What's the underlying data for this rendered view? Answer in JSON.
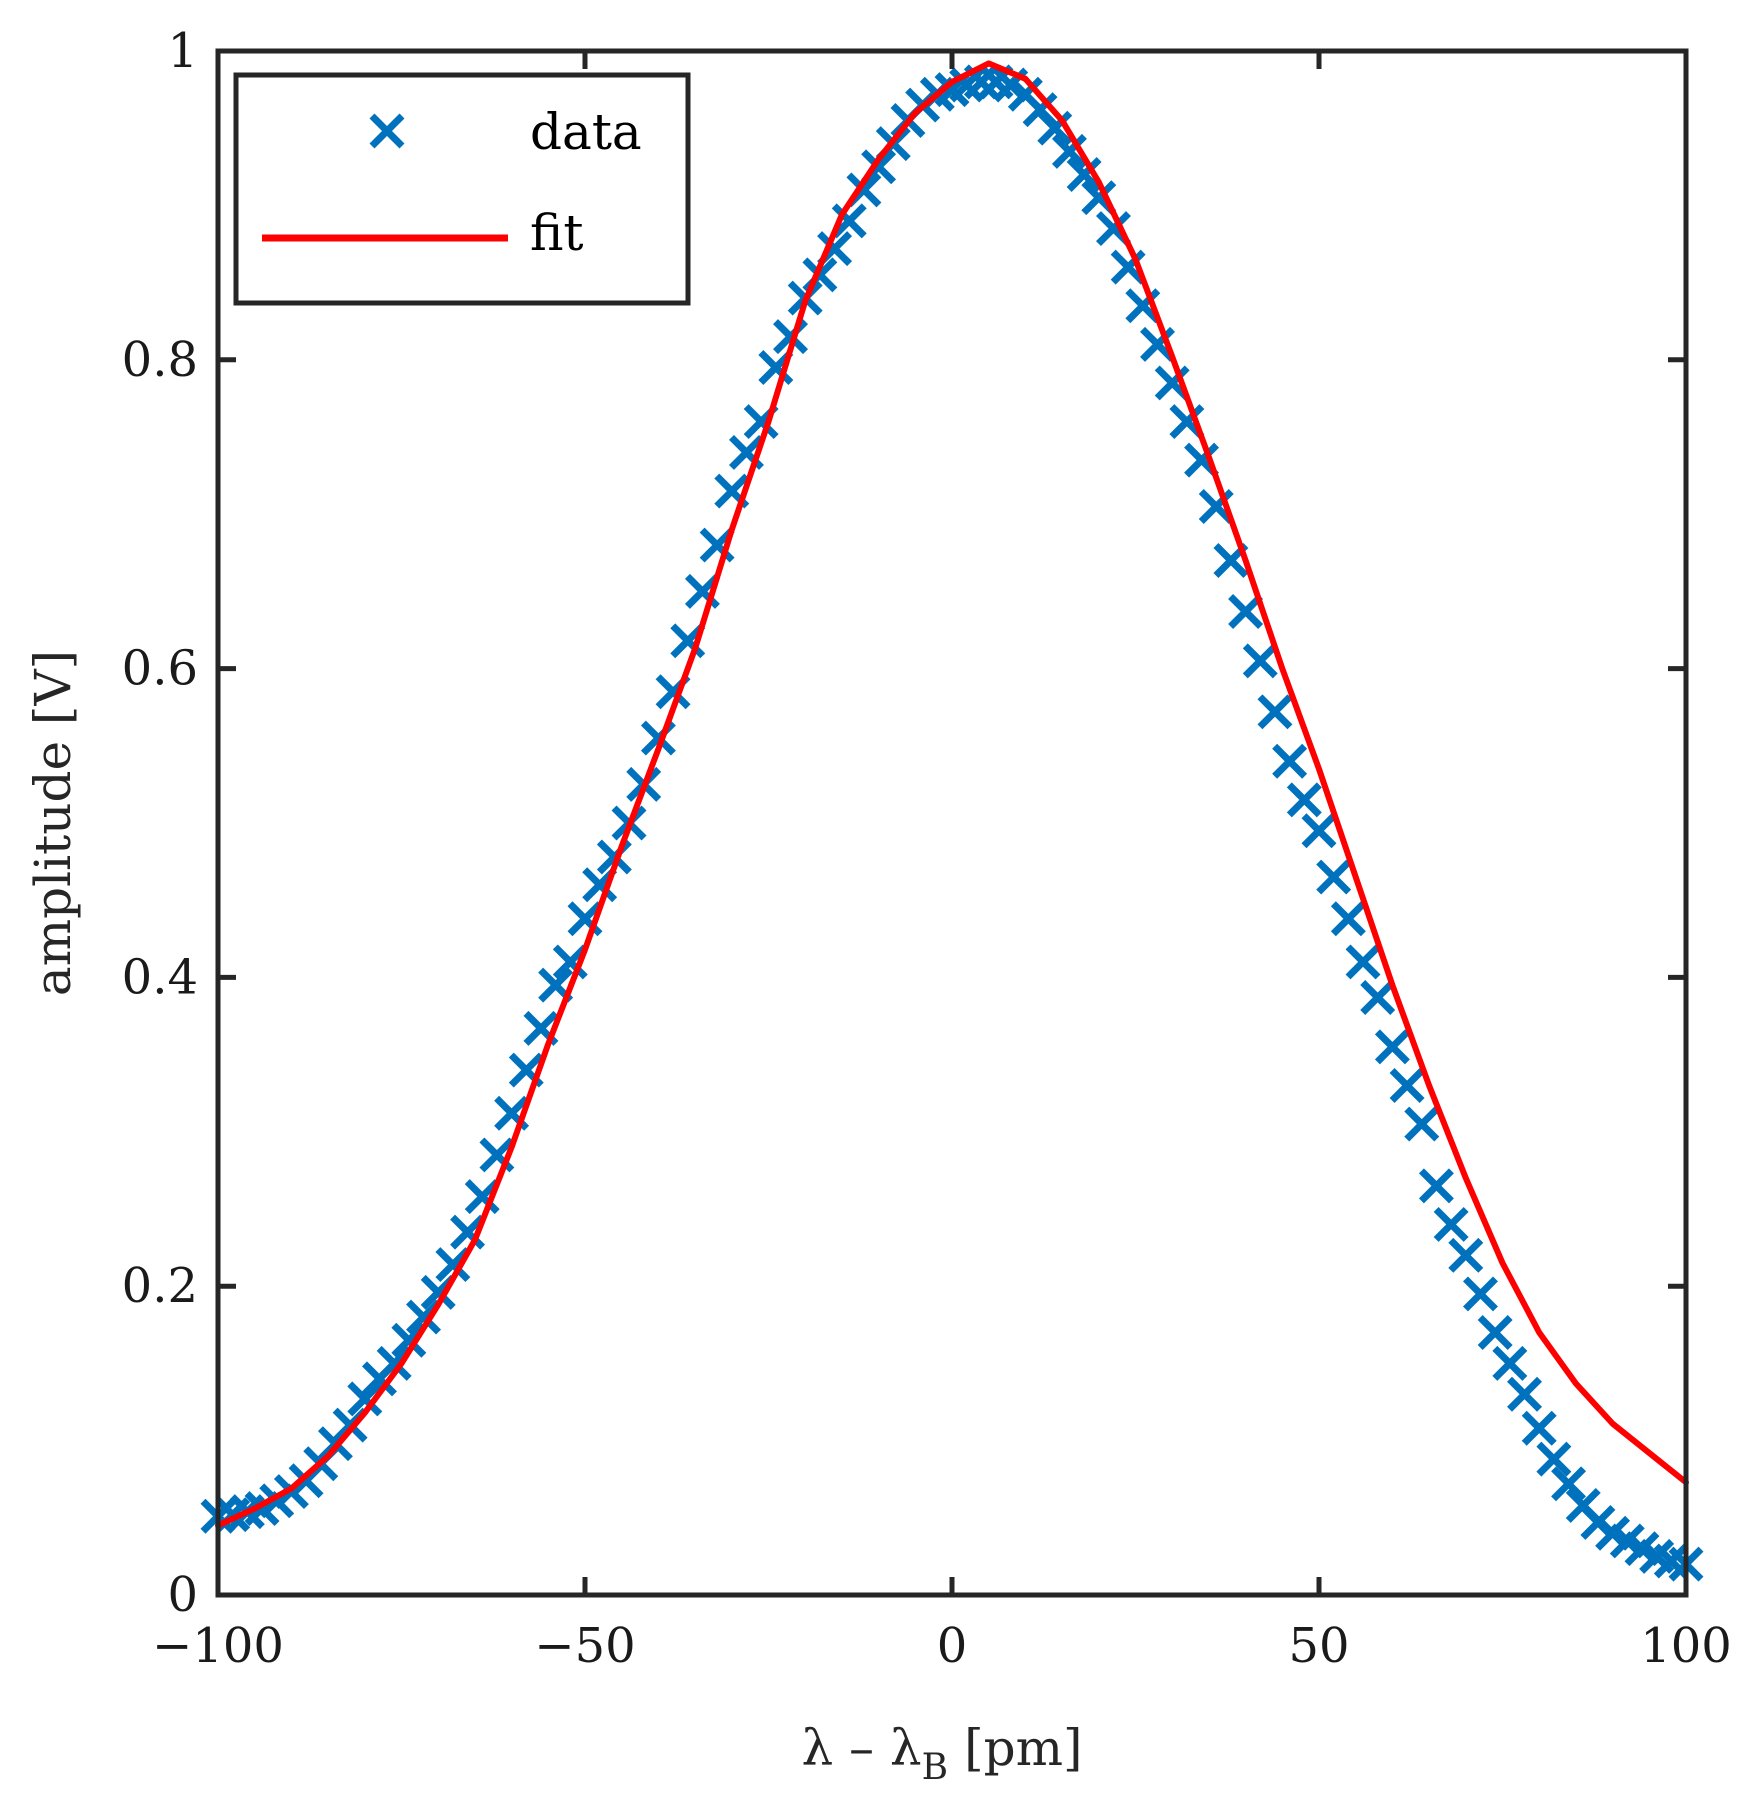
{
  "chart_data": {
    "type": "scatter",
    "title": "",
    "xlabel": "λ – λ",
    "xlabel_subscript": "B",
    "xlabel_unit": "[pm]",
    "ylabel": "amplitude [V]",
    "xlim": [
      -100,
      100
    ],
    "ylim": [
      0,
      1
    ],
    "x_ticks": [
      -100,
      -50,
      0,
      50,
      100
    ],
    "x_tick_labels": [
      "−100",
      "−50",
      "0",
      "50",
      "100"
    ],
    "y_ticks": [
      0,
      0.2,
      0.4,
      0.6,
      0.8,
      1
    ],
    "y_tick_labels": [
      "0",
      "0.2",
      "0.4",
      "0.6",
      "0.8",
      "1"
    ],
    "grid": false,
    "legend": {
      "position": "top-left",
      "entries": [
        "data",
        "fit"
      ]
    },
    "colors": {
      "data": "#0072BD",
      "fit": "#FF0000",
      "axes": "#262626"
    },
    "series": [
      {
        "name": "data",
        "style": "markers-x",
        "x": [
          -100,
          -98,
          -96,
          -94,
          -92,
          -90,
          -88,
          -86,
          -84,
          -82,
          -80,
          -78,
          -76,
          -74,
          -72,
          -70,
          -68,
          -66,
          -64,
          -62,
          -60,
          -58,
          -56,
          -54,
          -52,
          -50,
          -48,
          -46,
          -44,
          -42,
          -40,
          -38,
          -36,
          -34,
          -32,
          -30,
          -28,
          -26,
          -24,
          -22,
          -20,
          -18,
          -16,
          -14,
          -12,
          -10,
          -8,
          -6,
          -4,
          -2,
          0,
          2,
          4,
          6,
          8,
          10,
          12,
          14,
          16,
          18,
          20,
          22,
          24,
          26,
          28,
          30,
          32,
          34,
          36,
          38,
          40,
          42,
          44,
          46,
          48,
          50,
          52,
          54,
          56,
          58,
          60,
          62,
          64,
          66,
          68,
          70,
          72,
          74,
          76,
          78,
          80,
          82,
          84,
          86,
          88,
          90,
          92,
          94,
          96,
          98,
          100
        ],
        "y": [
          0.051,
          0.052,
          0.054,
          0.056,
          0.061,
          0.067,
          0.074,
          0.085,
          0.098,
          0.11,
          0.127,
          0.14,
          0.15,
          0.165,
          0.18,
          0.196,
          0.214,
          0.235,
          0.258,
          0.285,
          0.312,
          0.34,
          0.367,
          0.395,
          0.41,
          0.438,
          0.46,
          0.478,
          0.5,
          0.525,
          0.555,
          0.585,
          0.618,
          0.65,
          0.68,
          0.715,
          0.74,
          0.76,
          0.795,
          0.815,
          0.84,
          0.855,
          0.872,
          0.89,
          0.91,
          0.925,
          0.94,
          0.955,
          0.965,
          0.972,
          0.975,
          0.978,
          0.98,
          0.98,
          0.978,
          0.972,
          0.962,
          0.95,
          0.935,
          0.92,
          0.905,
          0.885,
          0.86,
          0.835,
          0.81,
          0.785,
          0.76,
          0.735,
          0.705,
          0.67,
          0.637,
          0.605,
          0.572,
          0.54,
          0.515,
          0.495,
          0.465,
          0.438,
          0.41,
          0.387,
          0.355,
          0.33,
          0.305,
          0.265,
          0.24,
          0.22,
          0.195,
          0.17,
          0.15,
          0.13,
          0.108,
          0.088,
          0.072,
          0.058,
          0.047,
          0.04,
          0.035,
          0.03,
          0.025,
          0.022,
          0.02
        ]
      },
      {
        "name": "fit",
        "style": "line",
        "x": [
          -100,
          -95,
          -90,
          -85,
          -80,
          -75,
          -70,
          -65,
          -60,
          -55,
          -50,
          -45,
          -40,
          -35,
          -30,
          -25,
          -20,
          -15,
          -10,
          -5,
          0,
          5,
          10,
          15,
          20,
          25,
          30,
          35,
          40,
          45,
          50,
          55,
          60,
          65,
          70,
          75,
          80,
          85,
          90,
          95,
          100
        ],
        "y": [
          0.045,
          0.056,
          0.069,
          0.09,
          0.118,
          0.15,
          0.188,
          0.23,
          0.29,
          0.357,
          0.418,
          0.485,
          0.548,
          0.613,
          0.69,
          0.76,
          0.838,
          0.894,
          0.93,
          0.96,
          0.98,
          0.992,
          0.982,
          0.955,
          0.915,
          0.865,
          0.802,
          0.737,
          0.67,
          0.6,
          0.535,
          0.465,
          0.395,
          0.33,
          0.27,
          0.215,
          0.17,
          0.137,
          0.111,
          0.092,
          0.073
        ]
      }
    ]
  }
}
